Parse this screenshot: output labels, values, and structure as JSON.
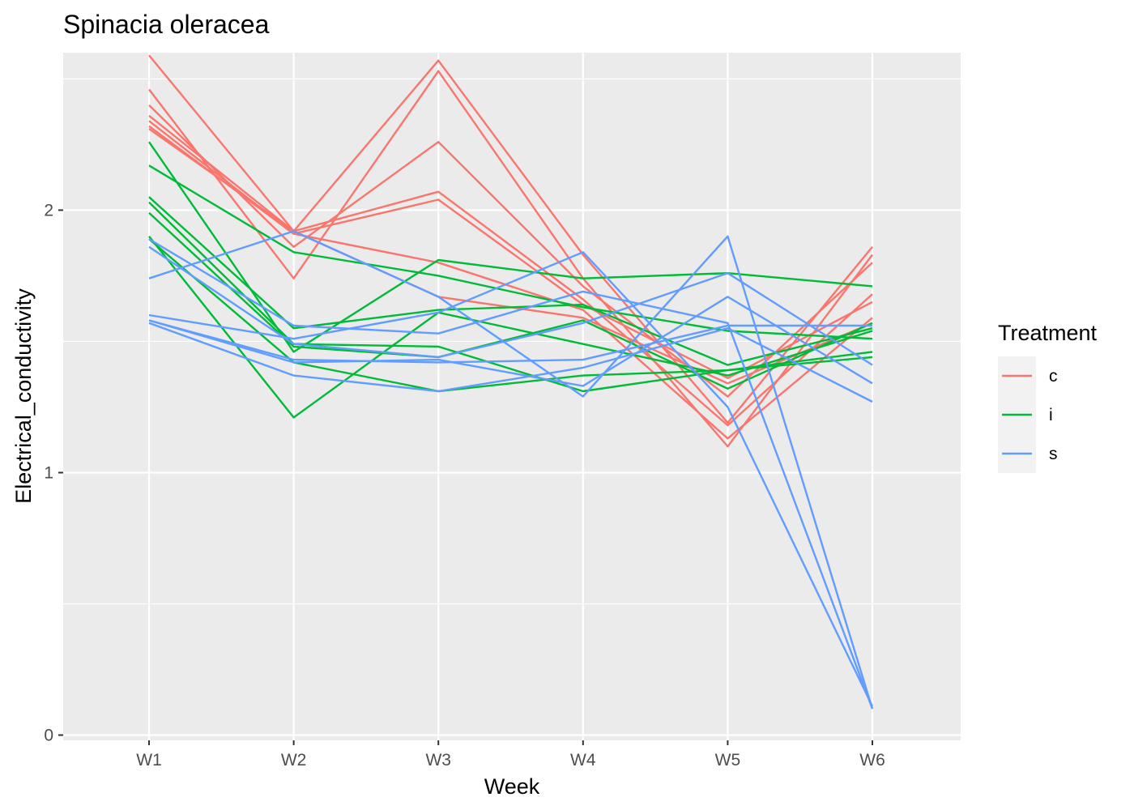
{
  "chart_data": {
    "type": "line",
    "title": "Spinacia oleracea",
    "xlabel": "Week",
    "ylabel": "Electrical_conductivity",
    "categories": [
      "W1",
      "W2",
      "W3",
      "W4",
      "W5",
      "W6"
    ],
    "yticks": [
      "0",
      "1",
      "2"
    ],
    "ylim": [
      -0.02,
      2.6
    ],
    "legend": {
      "title": "Treatment",
      "position": "right",
      "entries": [
        "c",
        "i",
        "s"
      ]
    },
    "colors": {
      "c": "#F8766D",
      "i": "#00BA38",
      "s": "#619CFF"
    },
    "series": [
      {
        "group": "c",
        "values": [
          2.59,
          1.92,
          2.57,
          1.83,
          1.19,
          1.86
        ]
      },
      {
        "group": "c",
        "values": [
          2.46,
          1.74,
          2.53,
          1.74,
          1.1,
          1.83
        ]
      },
      {
        "group": "c",
        "values": [
          2.4,
          1.86,
          2.26,
          1.71,
          1.29,
          1.8
        ]
      },
      {
        "group": "c",
        "values": [
          2.36,
          1.92,
          2.07,
          1.66,
          1.18,
          1.68
        ]
      },
      {
        "group": "c",
        "values": [
          2.34,
          1.91,
          2.04,
          1.64,
          1.36,
          1.65
        ]
      },
      {
        "group": "c",
        "values": [
          2.32,
          1.91,
          1.8,
          1.62,
          1.13,
          1.59
        ]
      },
      {
        "group": "c",
        "values": [
          2.31,
          1.92,
          1.67,
          1.59,
          1.34,
          1.57
        ]
      },
      {
        "group": "i",
        "values": [
          2.26,
          1.46,
          1.81,
          1.74,
          1.76,
          1.71
        ]
      },
      {
        "group": "i",
        "values": [
          2.17,
          1.84,
          1.75,
          1.63,
          1.54,
          1.51
        ]
      },
      {
        "group": "i",
        "values": [
          2.05,
          1.55,
          1.62,
          1.64,
          1.41,
          1.55
        ]
      },
      {
        "group": "i",
        "values": [
          2.03,
          1.49,
          1.48,
          1.31,
          1.39,
          1.44
        ]
      },
      {
        "group": "i",
        "values": [
          1.99,
          1.48,
          1.44,
          1.58,
          1.32,
          1.57
        ]
      },
      {
        "group": "i",
        "values": [
          1.9,
          1.21,
          1.61,
          1.49,
          1.37,
          1.54
        ]
      },
      {
        "group": "i",
        "values": [
          1.89,
          1.42,
          1.31,
          1.37,
          1.39,
          1.46
        ]
      },
      {
        "group": "s",
        "values": [
          1.89,
          1.56,
          1.53,
          1.69,
          1.57,
          0.1
        ]
      },
      {
        "group": "s",
        "values": [
          1.86,
          1.49,
          1.44,
          1.57,
          1.76,
          1.41
        ]
      },
      {
        "group": "s",
        "values": [
          1.74,
          1.92,
          1.67,
          1.29,
          1.9,
          0.1
        ]
      },
      {
        "group": "s",
        "values": [
          1.6,
          1.51,
          1.61,
          1.84,
          1.25,
          0.11
        ]
      },
      {
        "group": "s",
        "values": [
          1.58,
          1.42,
          1.43,
          1.33,
          1.67,
          1.34
        ]
      },
      {
        "group": "s",
        "values": [
          1.57,
          1.37,
          1.31,
          1.4,
          1.55,
          1.27
        ]
      },
      {
        "group": "s",
        "values": [
          1.58,
          1.43,
          1.42,
          1.43,
          1.56,
          1.56
        ]
      }
    ]
  }
}
